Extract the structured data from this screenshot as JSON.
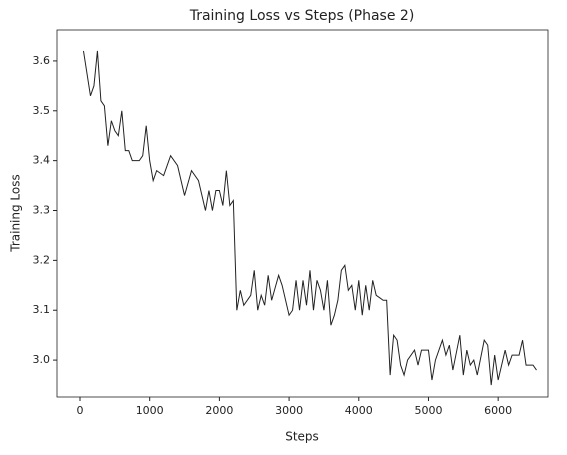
{
  "chart_data": {
    "type": "line",
    "title": "Training Loss vs Steps (Phase 2)",
    "xlabel": "Steps",
    "ylabel": "Training Loss",
    "x": [
      50,
      150,
      200,
      250,
      300,
      350,
      400,
      450,
      500,
      550,
      600,
      650,
      700,
      750,
      850,
      900,
      950,
      1000,
      1050,
      1100,
      1200,
      1300,
      1400,
      1500,
      1600,
      1700,
      1800,
      1850,
      1900,
      1950,
      2000,
      2050,
      2100,
      2150,
      2200,
      2250,
      2300,
      2350,
      2450,
      2500,
      2550,
      2600,
      2650,
      2700,
      2750,
      2850,
      2900,
      3000,
      3050,
      3100,
      3150,
      3200,
      3250,
      3300,
      3350,
      3400,
      3450,
      3500,
      3550,
      3600,
      3650,
      3700,
      3750,
      3800,
      3850,
      3900,
      3950,
      4000,
      4050,
      4100,
      4150,
      4200,
      4250,
      4350,
      4400,
      4450,
      4500,
      4550,
      4600,
      4650,
      4700,
      4800,
      4850,
      4900,
      5000,
      5050,
      5100,
      5200,
      5250,
      5300,
      5350,
      5450,
      5500,
      5550,
      5600,
      5650,
      5700,
      5800,
      5850,
      5900,
      5950,
      6000,
      6100,
      6150,
      6200,
      6300,
      6350,
      6400,
      6500,
      6550
    ],
    "series": [
      {
        "name": "Training Loss",
        "color": "#222222",
        "values": [
          3.62,
          3.53,
          3.55,
          3.62,
          3.52,
          3.51,
          3.43,
          3.48,
          3.46,
          3.45,
          3.5,
          3.42,
          3.42,
          3.4,
          3.4,
          3.41,
          3.47,
          3.4,
          3.36,
          3.38,
          3.37,
          3.41,
          3.39,
          3.33,
          3.38,
          3.36,
          3.3,
          3.34,
          3.3,
          3.34,
          3.34,
          3.31,
          3.38,
          3.31,
          3.32,
          3.1,
          3.14,
          3.11,
          3.13,
          3.18,
          3.1,
          3.13,
          3.11,
          3.17,
          3.12,
          3.17,
          3.15,
          3.09,
          3.1,
          3.16,
          3.1,
          3.16,
          3.11,
          3.18,
          3.1,
          3.16,
          3.14,
          3.1,
          3.16,
          3.07,
          3.09,
          3.12,
          3.18,
          3.19,
          3.14,
          3.15,
          3.1,
          3.16,
          3.09,
          3.15,
          3.1,
          3.16,
          3.13,
          3.12,
          3.12,
          2.97,
          3.05,
          3.04,
          2.99,
          2.97,
          3.0,
          3.02,
          2.99,
          3.02,
          3.02,
          2.96,
          3.0,
          3.04,
          3.01,
          3.03,
          2.98,
          3.05,
          2.97,
          3.02,
          2.99,
          3.0,
          2.97,
          3.04,
          3.03,
          2.95,
          3.01,
          2.96,
          3.02,
          2.99,
          3.01,
          3.01,
          3.04,
          2.99,
          2.99,
          2.98
        ]
      }
    ],
    "xlim": [
      -330,
      6715
    ],
    "ylim": [
      2.926,
      3.662
    ],
    "xticks": [
      0,
      1000,
      2000,
      3000,
      4000,
      5000,
      6000
    ],
    "yticks": [
      {
        "value": 3.0,
        "label": "3.0"
      },
      3.1,
      3.2,
      3.3,
      3.4,
      3.5,
      3.6
    ]
  }
}
